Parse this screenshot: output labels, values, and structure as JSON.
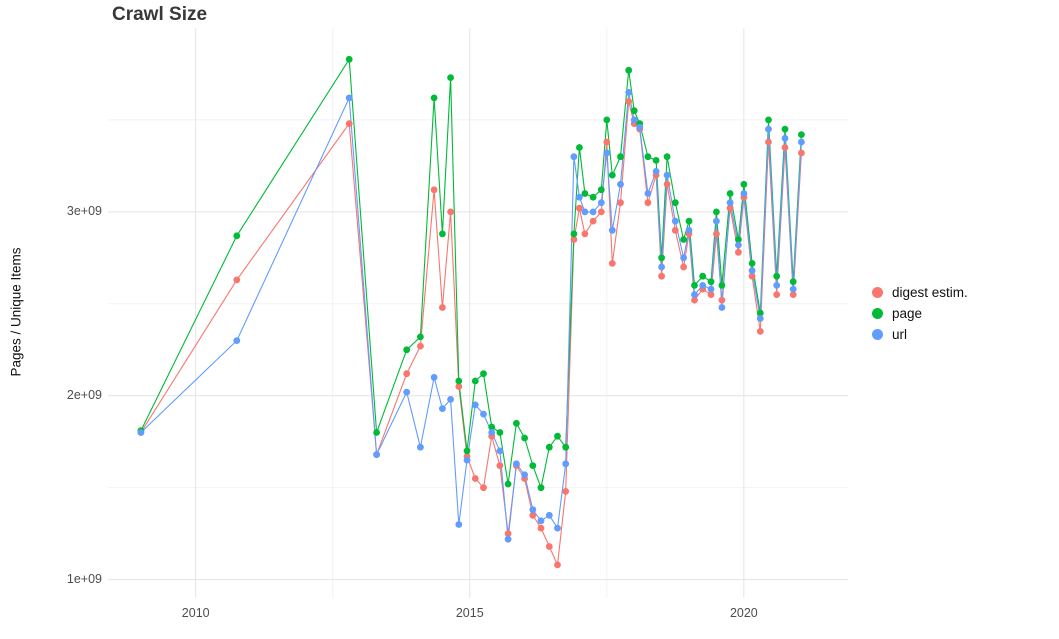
{
  "chart_data": {
    "type": "line",
    "title": "Crawl Size",
    "xlabel": "",
    "ylabel": "Pages / Unique Items",
    "unit": "values are in billions (1e+09)",
    "grid": true,
    "legend_position": "right",
    "background": "#ffffff",
    "grid_major_color": "#e4e4e4",
    "grid_minor_color": "#f2f2f2",
    "xlim": [
      2008.4,
      2021.9
    ],
    "ylim": [
      0.9,
      4.0
    ],
    "x_ticks": {
      "values": [
        2010,
        2015,
        2020
      ],
      "labels": [
        "2010",
        "2015",
        "2020"
      ]
    },
    "y_ticks": {
      "values": [
        1,
        2,
        3
      ],
      "labels": [
        "1e+09",
        "2e+09",
        "3e+09"
      ]
    },
    "x_minor": [
      2012.5,
      2017.5
    ],
    "y_minor": [
      1.5,
      2.5,
      3.5
    ],
    "x": [
      2009.0,
      2010.75,
      2012.8,
      2013.3,
      2013.85,
      2014.1,
      2014.35,
      2014.5,
      2014.65,
      2014.8,
      2014.95,
      2015.1,
      2015.25,
      2015.4,
      2015.55,
      2015.7,
      2015.85,
      2016.0,
      2016.15,
      2016.3,
      2016.45,
      2016.6,
      2016.75,
      2016.9,
      2017.0,
      2017.1,
      2017.25,
      2017.4,
      2017.5,
      2017.6,
      2017.75,
      2017.9,
      2018.0,
      2018.1,
      2018.25,
      2018.4,
      2018.5,
      2018.6,
      2018.75,
      2018.9,
      2019.0,
      2019.1,
      2019.25,
      2019.4,
      2019.5,
      2019.6,
      2019.75,
      2019.9,
      2020.0,
      2020.15,
      2020.3,
      2020.45,
      2020.6,
      2020.75,
      2020.9,
      2021.05
    ],
    "series": [
      {
        "name": "digest estim.",
        "color": "#F8766D",
        "values": [
          1.8,
          2.63,
          3.48,
          1.68,
          2.12,
          2.27,
          3.12,
          2.48,
          3.0,
          2.05,
          1.67,
          1.55,
          1.5,
          1.78,
          1.62,
          1.25,
          1.62,
          1.55,
          1.35,
          1.28,
          1.18,
          1.08,
          1.48,
          2.85,
          3.02,
          2.88,
          2.95,
          3.0,
          3.38,
          2.72,
          3.05,
          3.6,
          3.48,
          3.45,
          3.05,
          3.2,
          2.65,
          3.15,
          2.9,
          2.7,
          2.88,
          2.52,
          2.58,
          2.55,
          2.88,
          2.52,
          3.02,
          2.78,
          3.08,
          2.65,
          2.35,
          3.38,
          2.55,
          3.35,
          2.55,
          3.32
        ]
      },
      {
        "name": "page",
        "color": "#00BA38",
        "values": [
          1.81,
          2.87,
          3.83,
          1.8,
          2.25,
          2.32,
          3.62,
          2.88,
          3.73,
          2.08,
          1.7,
          2.08,
          2.12,
          1.83,
          1.8,
          1.52,
          1.85,
          1.77,
          1.62,
          1.5,
          1.72,
          1.78,
          1.72,
          2.88,
          3.35,
          3.1,
          3.08,
          3.12,
          3.5,
          3.2,
          3.3,
          3.77,
          3.55,
          3.48,
          3.3,
          3.28,
          2.75,
          3.3,
          3.05,
          2.85,
          2.95,
          2.6,
          2.65,
          2.62,
          3.0,
          2.6,
          3.1,
          2.85,
          3.15,
          2.72,
          2.45,
          3.5,
          2.65,
          3.45,
          2.62,
          3.42
        ]
      },
      {
        "name": "url",
        "color": "#619CFF",
        "values": [
          1.8,
          2.3,
          3.62,
          1.68,
          2.02,
          1.72,
          2.1,
          1.93,
          1.98,
          1.3,
          1.65,
          1.95,
          1.9,
          1.8,
          1.7,
          1.22,
          1.63,
          1.57,
          1.38,
          1.32,
          1.35,
          1.28,
          1.63,
          3.3,
          3.08,
          3.0,
          3.0,
          3.05,
          3.32,
          2.9,
          3.15,
          3.65,
          3.5,
          3.46,
          3.1,
          3.22,
          2.7,
          3.2,
          2.95,
          2.75,
          2.9,
          2.55,
          2.6,
          2.58,
          2.95,
          2.48,
          3.05,
          2.82,
          3.1,
          2.68,
          2.42,
          3.45,
          2.6,
          3.4,
          2.58,
          3.38
        ]
      }
    ]
  }
}
